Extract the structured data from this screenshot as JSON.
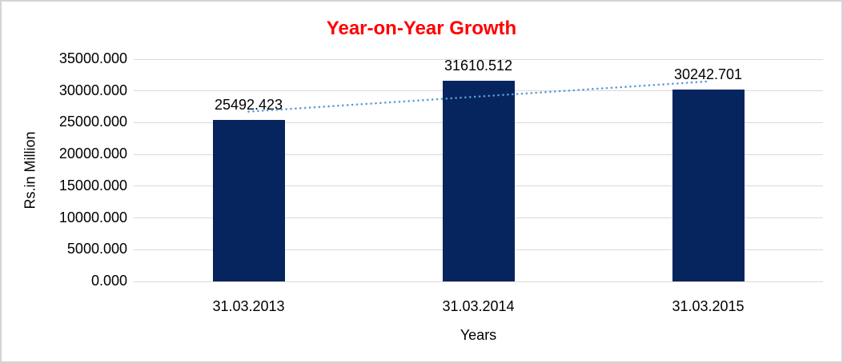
{
  "window": {
    "background": "#ffffff",
    "border_color": "#d4d4d4"
  },
  "chart_data": {
    "type": "bar",
    "title": "Year-on-Year Growth",
    "title_color": "#ff0000",
    "xlabel": "Years",
    "ylabel": "Rs.in Million",
    "categories": [
      "31.03.2013",
      "31.03.2014",
      "31.03.2015"
    ],
    "values": [
      25492.423,
      31610.512,
      30242.701
    ],
    "data_labels": [
      "25492.423",
      "31610.512",
      "30242.701"
    ],
    "ylim": [
      0,
      35000
    ],
    "ytick_step": 5000,
    "ytick_labels": [
      "0.000",
      "5000.000",
      "10000.000",
      "15000.000",
      "20000.000",
      "25000.000",
      "30000.000",
      "35000.000"
    ],
    "grid": true,
    "legend_position": "none",
    "bar_color": "#06255f",
    "gridline_color": "#d9d9d9",
    "text_color": "#000000",
    "trendline": {
      "type": "linear",
      "style": "dotted",
      "color": "#5b9bd5",
      "value_start": 26740,
      "value_end": 31490
    }
  }
}
